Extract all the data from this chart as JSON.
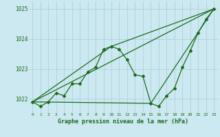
{
  "title": "Graphe pression niveau de la mer (hPa)",
  "bg_color": "#cce8f0",
  "grid_color": "#aaccd8",
  "line_color": "#1a6b1a",
  "xlim": [
    -0.5,
    23.5
  ],
  "ylim": [
    1021.55,
    1025.25
  ],
  "yticks": [
    1022,
    1023,
    1024,
    1025
  ],
  "xticks": [
    0,
    1,
    2,
    3,
    4,
    5,
    6,
    7,
    8,
    9,
    10,
    11,
    12,
    13,
    14,
    15,
    16,
    17,
    18,
    19,
    20,
    21,
    22,
    23
  ],
  "series1_x": [
    0,
    1,
    2,
    3,
    4,
    5,
    6,
    7,
    8,
    9,
    10,
    11,
    12,
    13,
    14,
    15,
    16,
    17,
    18,
    19,
    20,
    21,
    22,
    23
  ],
  "series1_y": [
    1021.9,
    1021.75,
    1021.9,
    1022.2,
    1022.1,
    1022.5,
    1022.5,
    1022.9,
    1023.05,
    1023.65,
    1023.75,
    1023.65,
    1023.3,
    1022.8,
    1022.75,
    1021.85,
    1021.75,
    1022.1,
    1022.35,
    1023.05,
    1023.6,
    1024.2,
    1024.65,
    1025.0
  ],
  "series2_x": [
    0,
    23
  ],
  "series2_y": [
    1021.9,
    1025.0
  ],
  "series3_x": [
    0,
    10,
    23
  ],
  "series3_y": [
    1021.9,
    1023.75,
    1025.0
  ],
  "series4_x": [
    0,
    15,
    23
  ],
  "series4_y": [
    1021.9,
    1021.85,
    1025.0
  ]
}
